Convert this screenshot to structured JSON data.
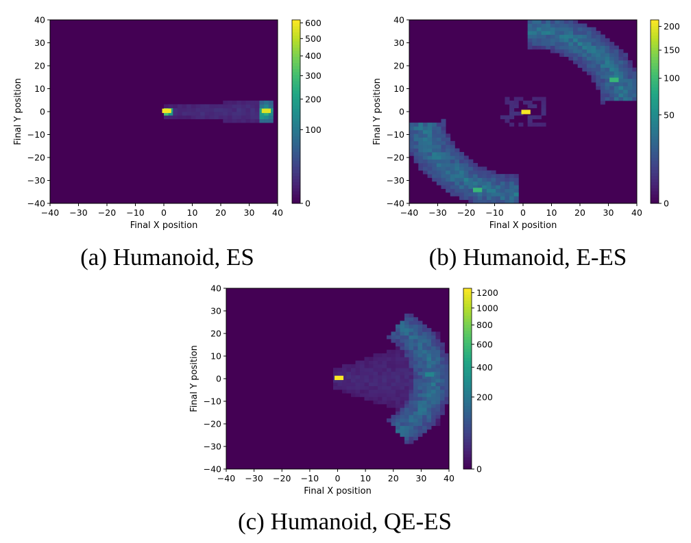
{
  "chart_data": [
    {
      "type": "heatmap",
      "caption": "(a) Humanoid, ES",
      "xlabel": "Final X position",
      "ylabel": "Final Y position",
      "xlim": [
        -40,
        40
      ],
      "ylim": [
        -40,
        40
      ],
      "xticks": [
        "−40",
        "−30",
        "−20",
        "−10",
        "0",
        "10",
        "20",
        "30",
        "40"
      ],
      "yticks": [
        "40",
        "30",
        "20",
        "10",
        "0",
        "−10",
        "−20",
        "−30",
        "−40"
      ],
      "colormap": "viridis",
      "colorbar_scale": "sqrt",
      "colorbar_max": 620,
      "colorbar_ticks": [
        {
          "value": 0,
          "label": "0"
        },
        {
          "value": 100,
          "label": "100"
        },
        {
          "value": 200,
          "label": "200"
        },
        {
          "value": 300,
          "label": "300"
        },
        {
          "value": 400,
          "label": "400"
        },
        {
          "value": 500,
          "label": "500"
        },
        {
          "value": 600,
          "label": "600"
        }
      ],
      "regions": [
        {
          "kind": "band",
          "x0": 0,
          "x1": 36,
          "y_center": 0,
          "half_width_start": 2.5,
          "half_width_end": 5,
          "value": 12
        },
        {
          "kind": "blob",
          "x": 36,
          "y": 0,
          "rx": 3,
          "ry": 5,
          "value": 180
        },
        {
          "kind": "blob",
          "x": 1,
          "y": 0,
          "rx": 2,
          "ry": 1.5,
          "value": 450
        }
      ],
      "hotspots": [
        {
          "x": 1,
          "y": 0.5,
          "value": 600
        },
        {
          "x": 36,
          "y": 0.5,
          "value": 560
        }
      ]
    },
    {
      "type": "heatmap",
      "caption": "(b) Humanoid, E-ES",
      "xlabel": "Final X position",
      "ylabel": "Final Y position",
      "xlim": [
        -40,
        40
      ],
      "ylim": [
        -40,
        40
      ],
      "xticks": [
        "−40",
        "−30",
        "−20",
        "−10",
        "0",
        "10",
        "20",
        "30",
        "40"
      ],
      "yticks": [
        "40",
        "30",
        "20",
        "10",
        "0",
        "−10",
        "−20",
        "−30",
        "−40"
      ],
      "colormap": "viridis",
      "colorbar_scale": "sqrt",
      "colorbar_max": 215,
      "colorbar_ticks": [
        {
          "value": 0,
          "label": "0"
        },
        {
          "value": 50,
          "label": "50"
        },
        {
          "value": 100,
          "label": "100"
        },
        {
          "value": 150,
          "label": "150"
        },
        {
          "value": 200,
          "label": "200"
        }
      ],
      "regions": [
        {
          "kind": "arc",
          "cx": 0,
          "cy": 0,
          "r": 36,
          "a0": 8,
          "a1": 88,
          "thickness": 8,
          "value": 30
        },
        {
          "kind": "arc",
          "cx": 0,
          "cy": 0,
          "r": 36,
          "a0": 188,
          "a1": 268,
          "thickness": 8,
          "value": 30
        },
        {
          "kind": "band",
          "x0": -8,
          "x1": 8,
          "y_center": 0,
          "half_width_start": 7,
          "half_width_end": 7,
          "value": 4
        }
      ],
      "hotspots": [
        {
          "x": 1,
          "y": 0,
          "value": 210
        },
        {
          "x": 32,
          "y": 14,
          "value": 95
        },
        {
          "x": -16,
          "y": -34,
          "value": 95
        }
      ]
    },
    {
      "type": "heatmap",
      "caption": "(c) Humanoid, QE-ES",
      "xlabel": "Final X position",
      "ylabel": "Final Y position",
      "xlim": [
        -40,
        40
      ],
      "ylim": [
        -40,
        40
      ],
      "xticks": [
        "−40",
        "−30",
        "−20",
        "−10",
        "0",
        "10",
        "20",
        "30",
        "40"
      ],
      "yticks": [
        "40",
        "30",
        "20",
        "10",
        "0",
        "−10",
        "−20",
        "−30",
        "−40"
      ],
      "colormap": "viridis",
      "colorbar_scale": "sqrt",
      "colorbar_max": 1260,
      "colorbar_ticks": [
        {
          "value": 0,
          "label": "0"
        },
        {
          "value": 200,
          "label": "200"
        },
        {
          "value": 400,
          "label": "400"
        },
        {
          "value": 600,
          "label": "600"
        },
        {
          "value": 800,
          "label": "800"
        },
        {
          "value": 1000,
          "label": "1000"
        },
        {
          "value": 1200,
          "label": "1200"
        }
      ],
      "regions": [
        {
          "kind": "fan",
          "x0": -2,
          "x1": 36,
          "y_center": 0,
          "half_width_start": 4,
          "half_width_end": 20,
          "value": 18
        },
        {
          "kind": "arc",
          "cx": 5,
          "cy": 0,
          "r": 29,
          "a0": -55,
          "a1": 55,
          "thickness": 7,
          "value": 150
        }
      ],
      "hotspots": [
        {
          "x": 0.5,
          "y": 0.5,
          "value": 1250
        },
        {
          "x": 33,
          "y": 2,
          "value": 260
        }
      ]
    }
  ]
}
